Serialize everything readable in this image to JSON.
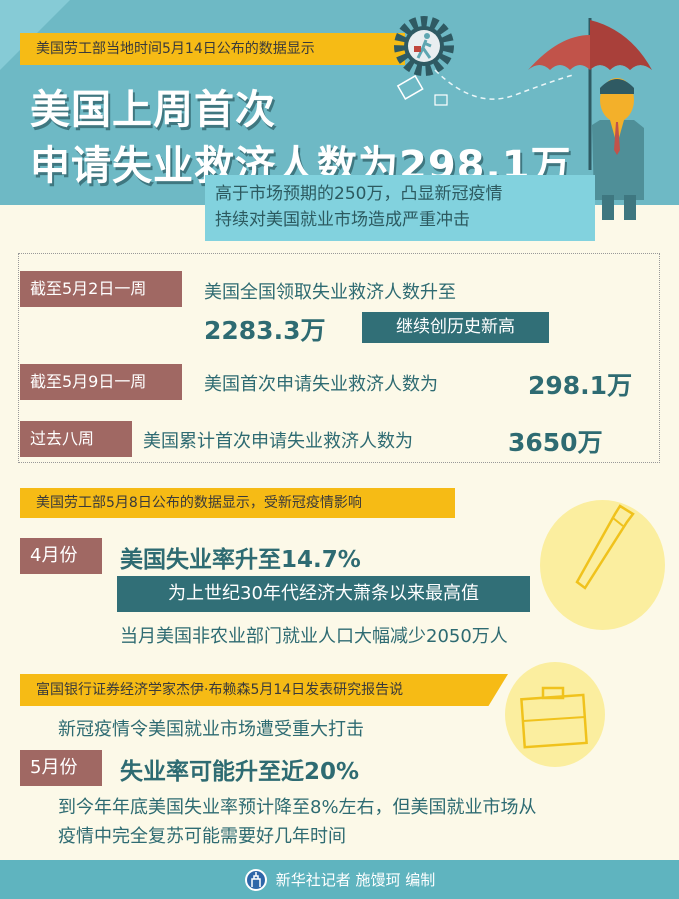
{
  "header": {
    "source_banner": "美国劳工部当地时间5月14日公布的数据显示",
    "title_line1": "美国上周首次",
    "title_line2": "申请失业救济人数为298.1万",
    "subtitle_line1": "高于市场预期的250万，凸显新冠疫情",
    "subtitle_line2": "持续对美国就业市场造成严重冲击"
  },
  "stats": [
    {
      "label": "截至5月2日一周",
      "text": "美国全国领取失业救济人数升至",
      "value": "2283.3万",
      "note": "继续创历史新高"
    },
    {
      "label": "截至5月9日一周",
      "text": "美国首次申请失业救济人数为",
      "value": "298.1万"
    },
    {
      "label": "过去八周",
      "text": "美国累计首次申请失业救济人数为",
      "value": "3650万"
    }
  ],
  "april": {
    "banner": "美国劳工部5月8日公布的数据显示，受新冠疫情影响",
    "label": "4月份",
    "headline": "美国失业率升至14.7%",
    "note": "为上世纪30年代经济大萧条以来最高值",
    "detail": "当月美国非农业部门就业人口大幅减少2050万人"
  },
  "may": {
    "banner": "富国银行证券经济学家杰伊·布赖森5月14日发表研究报告说",
    "intro": "新冠疫情令美国就业市场遭受重大打击",
    "label": "5月份",
    "headline": "失业率可能升至近20%",
    "detail_line1": "到今年年底美国失业率预计降至8%左右，但美国就业市场从",
    "detail_line2": "疫情中完全复苏可能需要好几年时间"
  },
  "footer": {
    "credit": "新华社记者 施馒珂 编制",
    "logo_icon": "xinhua-logo-icon"
  },
  "colors": {
    "teal_bg": "#6eb9c5",
    "cream_bg": "#fcf9e8",
    "yellow": "#f6bb15",
    "label_brown": "#a06863",
    "dark_teal": "#316f77"
  }
}
